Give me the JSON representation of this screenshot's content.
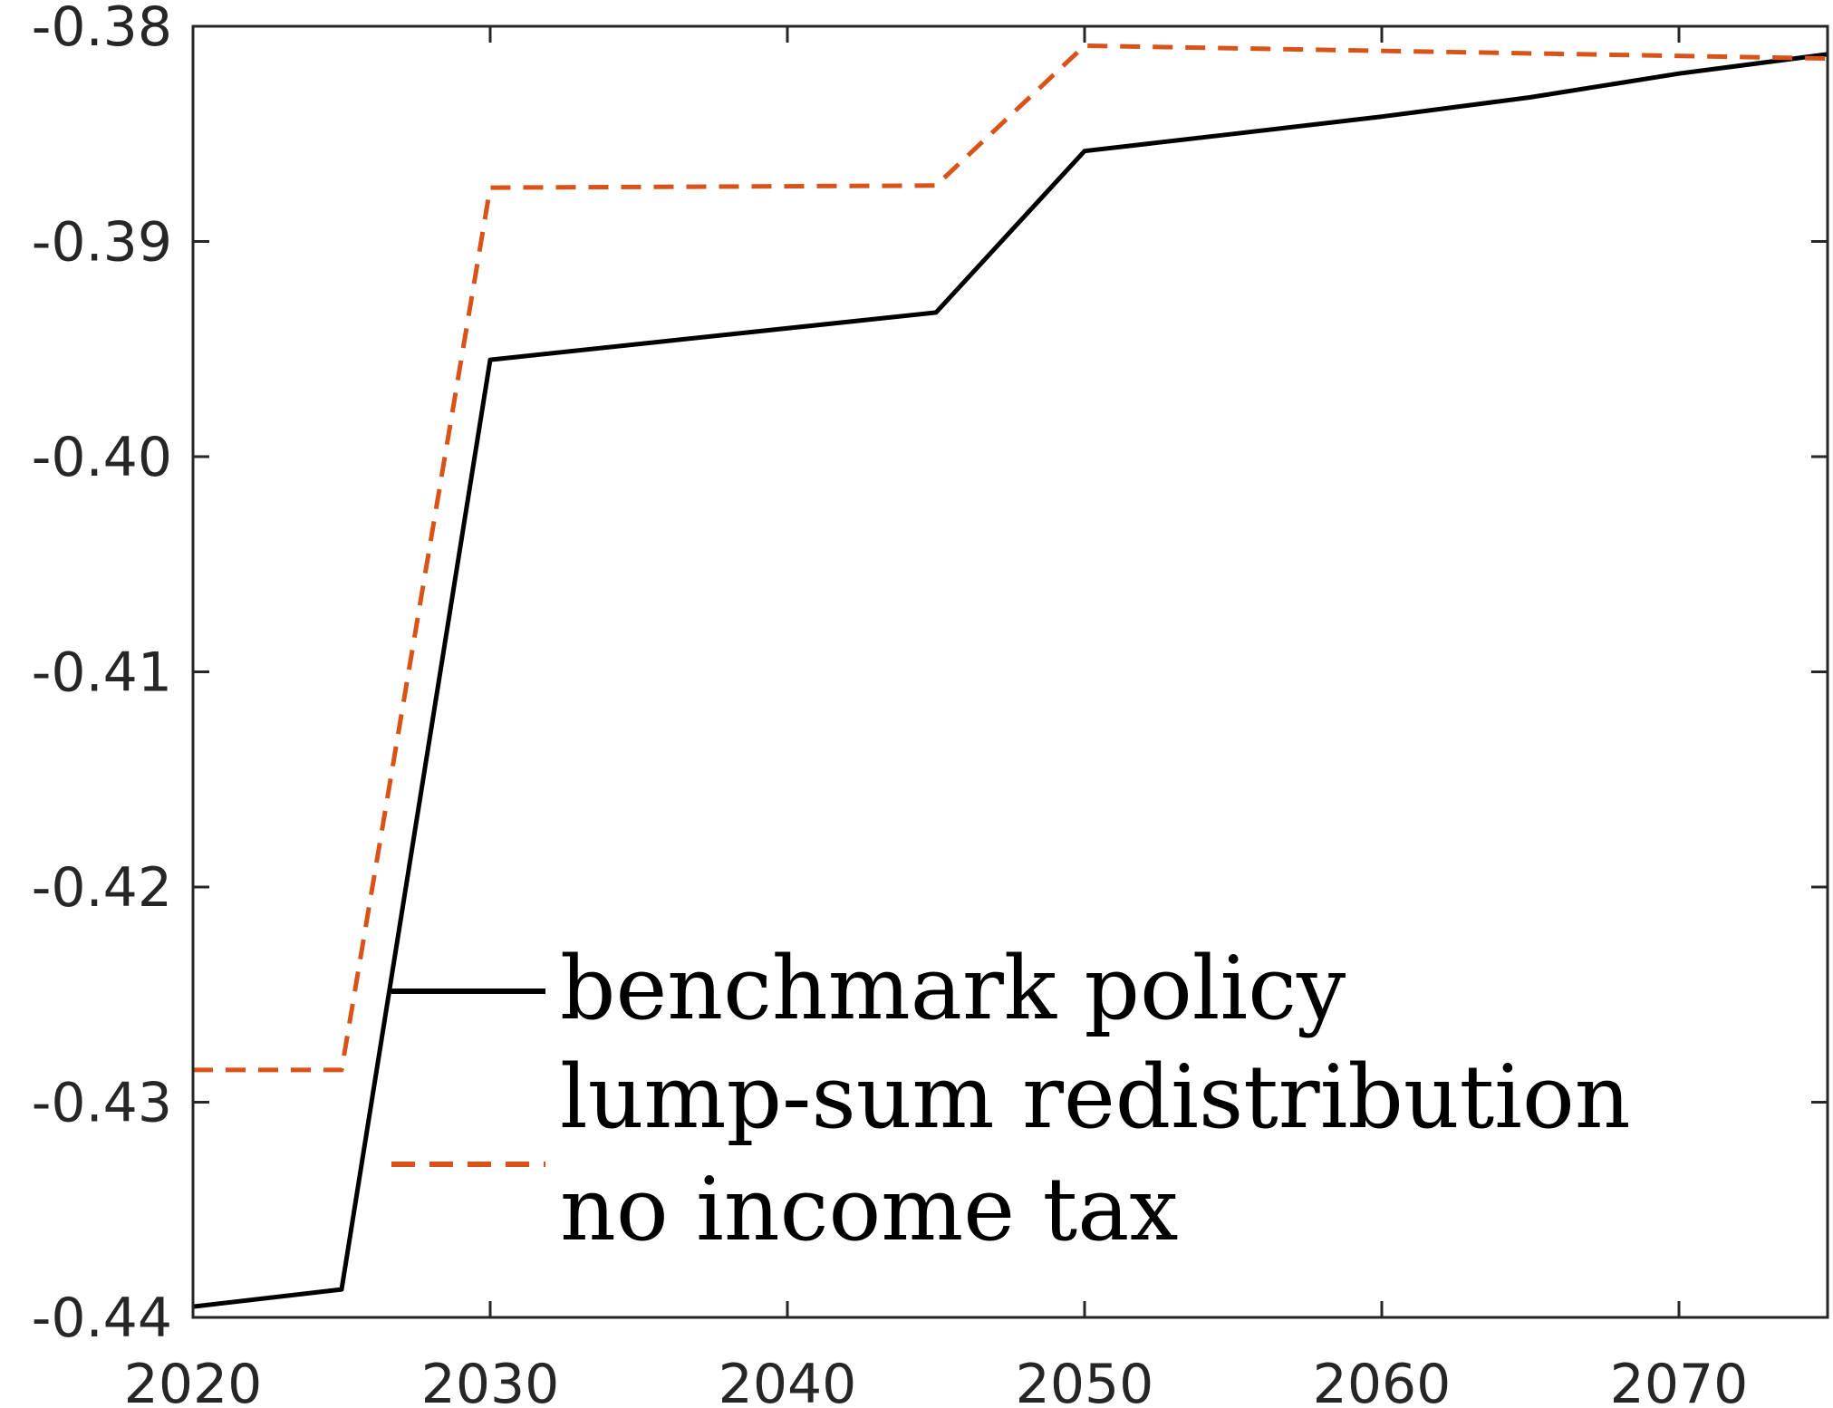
{
  "chart_data": {
    "type": "line",
    "title": "",
    "xlabel": "",
    "ylabel": "",
    "xlim": [
      2020,
      2075
    ],
    "ylim": [
      -0.44,
      -0.38
    ],
    "xticks": [
      2020,
      2030,
      2040,
      2050,
      2060,
      2070
    ],
    "yticks": [
      -0.44,
      -0.43,
      -0.42,
      -0.41,
      -0.4,
      -0.39,
      -0.38
    ],
    "xtick_labels": [
      "2020",
      "2030",
      "2040",
      "2050",
      "2060",
      "2070"
    ],
    "ytick_labels": [
      "-0.44",
      "-0.43",
      "-0.42",
      "-0.41",
      "-0.40",
      "-0.39",
      "-0.38"
    ],
    "grid": false,
    "legend_position": "lower-center",
    "series": [
      {
        "name": "benchmark policy",
        "color": "#000000",
        "style": "solid",
        "x": [
          2020,
          2025,
          2030,
          2045,
          2050,
          2055,
          2060,
          2065,
          2070,
          2075
        ],
        "y": [
          -0.4395,
          -0.4387,
          -0.3955,
          -0.3933,
          -0.3858,
          -0.385,
          -0.3842,
          -0.3833,
          -0.3822,
          -0.3813
        ]
      },
      {
        "name": "lump-sum redistribution",
        "color": "#D95319",
        "style": "dashed",
        "x": [
          2020,
          2025,
          2030,
          2045,
          2050,
          2075
        ],
        "y": [
          -0.4285,
          -0.4285,
          -0.3875,
          -0.3874,
          -0.3809,
          -0.3815
        ]
      }
    ],
    "legend_extra_text": "no income tax"
  }
}
